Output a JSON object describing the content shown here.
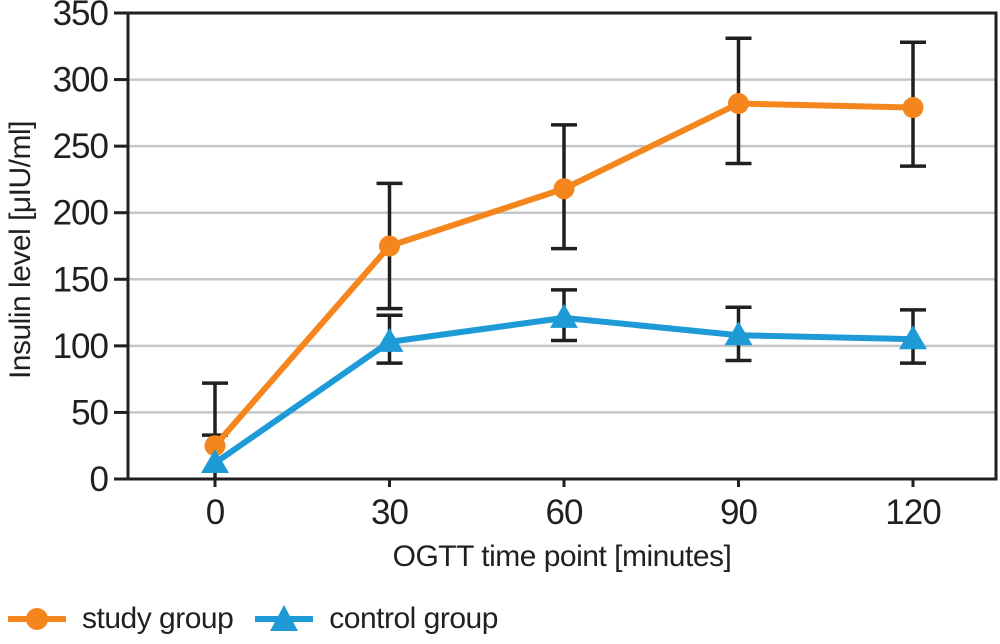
{
  "palette": {
    "text": "#231F20",
    "axis": "#221F1F",
    "grid": "#C6C7C9",
    "background": "#FFFFFF"
  },
  "chart_data": {
    "type": "line",
    "x": [
      0,
      30,
      60,
      90,
      120
    ],
    "xlabel": "OGTT time point [minutes]",
    "ylabel": "Insulin level [μIU/ml]",
    "ylim": [
      0,
      350
    ],
    "ytick_step": 50,
    "grid": true,
    "error_bars": true,
    "legend_position": "bottom-left",
    "series": [
      {
        "name": "study group",
        "color": "#F5861D",
        "marker": "circle",
        "values": [
          25,
          175,
          218,
          282,
          279
        ],
        "error_low": [
          0,
          128,
          173,
          237,
          235
        ],
        "error_high": [
          72,
          222,
          266,
          331,
          328
        ],
        "cap_low": [
          false,
          true,
          true,
          true,
          true
        ],
        "cap_high": [
          true,
          true,
          true,
          true,
          true
        ]
      },
      {
        "name": "control group",
        "color": "#1E9BD7",
        "marker": "triangle",
        "values": [
          12,
          103,
          121,
          108,
          105
        ],
        "error_low": [
          12,
          87,
          104,
          89,
          87
        ],
        "error_high": [
          33,
          123,
          142,
          129,
          127
        ],
        "cap_low": [
          false,
          true,
          true,
          true,
          true
        ],
        "cap_high": [
          true,
          true,
          true,
          true,
          true
        ]
      }
    ]
  }
}
